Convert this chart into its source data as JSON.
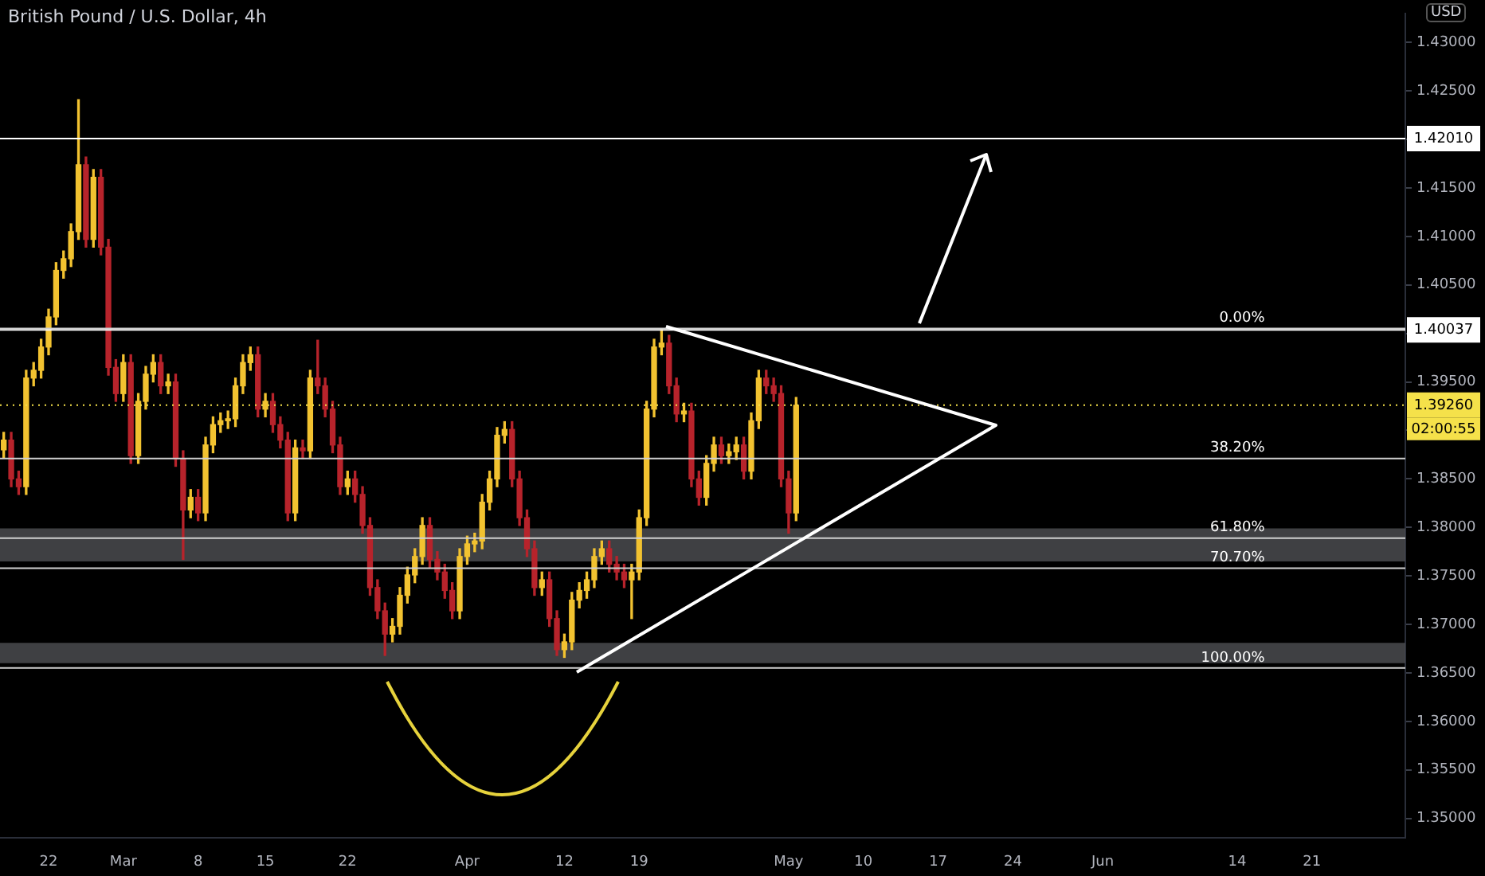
{
  "chart_data": {
    "type": "candlestick",
    "title": "British Pound / U.S. Dollar, 4h",
    "ylabel": "USD",
    "categories": [
      null,
      null,
      null,
      null,
      null,
      null,
      "22",
      null,
      null,
      null,
      null,
      null,
      null,
      null,
      null,
      null,
      "Mar",
      null,
      null,
      null,
      null,
      null,
      null,
      null,
      null,
      null,
      "8",
      null,
      null,
      null,
      null,
      null,
      null,
      null,
      null,
      "15",
      null,
      null,
      null,
      null,
      null,
      null,
      null,
      null,
      null,
      null,
      "22",
      null,
      null,
      null,
      null,
      null,
      null,
      null,
      null,
      null,
      null,
      null,
      null,
      null,
      null,
      null,
      "Apr",
      null,
      null,
      null,
      null,
      null,
      null,
      null,
      null,
      null,
      null,
      null,
      null,
      "12",
      null,
      null,
      null,
      null,
      null,
      null,
      null,
      null,
      null,
      "19",
      null,
      null,
      null,
      null,
      null,
      null,
      null,
      null,
      null,
      null,
      null,
      null,
      null,
      null,
      null,
      null,
      null,
      null,
      null,
      "May",
      null,
      null,
      null,
      null,
      null,
      null,
      null,
      null,
      null,
      "10",
      null,
      null,
      null,
      null,
      null,
      null,
      null,
      null,
      null,
      "17",
      null,
      null,
      null,
      null,
      null,
      null,
      null,
      null,
      null,
      "24",
      null,
      null,
      null,
      null,
      null,
      null,
      null,
      null,
      null,
      null,
      null,
      "Jun",
      null,
      null,
      null,
      null,
      null,
      null,
      null,
      null,
      null,
      null,
      null,
      null,
      null,
      null,
      null,
      null,
      null,
      "14",
      null,
      null,
      null,
      null,
      null,
      null,
      null,
      null,
      null,
      "21",
      null,
      null,
      null,
      null,
      null,
      null,
      null,
      null,
      null,
      null,
      null,
      null
    ],
    "ohlc": [
      [
        1.388,
        1.3898,
        1.3872,
        1.389
      ],
      [
        1.389,
        1.3898,
        1.3842,
        1.385
      ],
      [
        1.385,
        1.3858,
        1.3834,
        1.3842
      ],
      [
        1.3842,
        1.3962,
        1.3834,
        1.3954
      ],
      [
        1.3954,
        1.397,
        1.3946,
        1.3962
      ],
      [
        1.3962,
        1.3994,
        1.3954,
        1.3986
      ],
      [
        1.3986,
        1.4025,
        1.3978,
        1.4017
      ],
      [
        1.4017,
        1.4073,
        1.4009,
        1.4065
      ],
      [
        1.4065,
        1.4085,
        1.4057,
        1.4077
      ],
      [
        1.4077,
        1.4113,
        1.4069,
        1.4105
      ],
      [
        1.4105,
        1.4241,
        1.4097,
        1.4174
      ],
      [
        1.4174,
        1.4182,
        1.4089,
        1.4097
      ],
      [
        1.4097,
        1.4169,
        1.4089,
        1.4161
      ],
      [
        1.4161,
        1.4169,
        1.4081,
        1.4089
      ],
      [
        1.4089,
        1.4097,
        1.3957,
        1.3965
      ],
      [
        1.3965,
        1.3973,
        1.393,
        1.3938
      ],
      [
        1.3938,
        1.3978,
        1.393,
        1.397
      ],
      [
        1.397,
        1.3978,
        1.3866,
        1.3874
      ],
      [
        1.3874,
        1.3938,
        1.3866,
        1.393
      ],
      [
        1.393,
        1.3966,
        1.3922,
        1.3958
      ],
      [
        1.3958,
        1.3978,
        1.395,
        1.397
      ],
      [
        1.397,
        1.3978,
        1.3938,
        1.3946
      ],
      [
        1.3946,
        1.3958,
        1.3938,
        1.395
      ],
      [
        1.395,
        1.3958,
        1.3863,
        1.3871
      ],
      [
        1.3871,
        1.3879,
        1.3767,
        1.3818
      ],
      [
        1.3818,
        1.3839,
        1.381,
        1.3831
      ],
      [
        1.3831,
        1.3839,
        1.3807,
        1.3815
      ],
      [
        1.3815,
        1.3893,
        1.3807,
        1.3885
      ],
      [
        1.3885,
        1.3914,
        1.3877,
        1.3906
      ],
      [
        1.3906,
        1.3918,
        1.3898,
        1.391
      ],
      [
        1.391,
        1.392,
        1.3902,
        1.3912
      ],
      [
        1.3912,
        1.3954,
        1.3904,
        1.3946
      ],
      [
        1.3946,
        1.3978,
        1.3938,
        1.397
      ],
      [
        1.397,
        1.3986,
        1.3962,
        1.3978
      ],
      [
        1.3978,
        1.3986,
        1.3914,
        1.3922
      ],
      [
        1.3922,
        1.3938,
        1.3914,
        1.393
      ],
      [
        1.393,
        1.3938,
        1.3898,
        1.3906
      ],
      [
        1.3906,
        1.3914,
        1.3882,
        1.389
      ],
      [
        1.389,
        1.3898,
        1.3807,
        1.3815
      ],
      [
        1.3815,
        1.389,
        1.3807,
        1.3882
      ],
      [
        1.3882,
        1.389,
        1.3871,
        1.3879
      ],
      [
        1.3879,
        1.3962,
        1.3871,
        1.3954
      ],
      [
        1.3954,
        1.3993,
        1.3938,
        1.3946
      ],
      [
        1.3946,
        1.3954,
        1.3914,
        1.3922
      ],
      [
        1.3922,
        1.393,
        1.3877,
        1.3885
      ],
      [
        1.3885,
        1.3893,
        1.3834,
        1.3842
      ],
      [
        1.3842,
        1.3858,
        1.3834,
        1.385
      ],
      [
        1.385,
        1.3858,
        1.3826,
        1.3834
      ],
      [
        1.3834,
        1.3842,
        1.3794,
        1.3802
      ],
      [
        1.3802,
        1.381,
        1.373,
        1.3738
      ],
      [
        1.3738,
        1.3746,
        1.3706,
        1.3714
      ],
      [
        1.3714,
        1.3722,
        1.3668,
        1.369
      ],
      [
        1.369,
        1.3706,
        1.3682,
        1.3698
      ],
      [
        1.3698,
        1.3738,
        1.369,
        1.373
      ],
      [
        1.373,
        1.3759,
        1.3722,
        1.3751
      ],
      [
        1.3751,
        1.3778,
        1.3743,
        1.377
      ],
      [
        1.377,
        1.381,
        1.3762,
        1.3802
      ],
      [
        1.3802,
        1.381,
        1.3759,
        1.3767
      ],
      [
        1.3767,
        1.3775,
        1.3746,
        1.3754
      ],
      [
        1.3754,
        1.3762,
        1.3727,
        1.3735
      ],
      [
        1.3735,
        1.3743,
        1.3706,
        1.3714
      ],
      [
        1.3714,
        1.3778,
        1.3706,
        1.377
      ],
      [
        1.377,
        1.3791,
        1.3762,
        1.3783
      ],
      [
        1.3783,
        1.3794,
        1.3775,
        1.3786
      ],
      [
        1.3786,
        1.3834,
        1.3778,
        1.3826
      ],
      [
        1.3826,
        1.3858,
        1.3818,
        1.385
      ],
      [
        1.385,
        1.3903,
        1.3842,
        1.3895
      ],
      [
        1.3895,
        1.3909,
        1.3887,
        1.3901
      ],
      [
        1.3901,
        1.3909,
        1.3842,
        1.385
      ],
      [
        1.385,
        1.3858,
        1.3802,
        1.381
      ],
      [
        1.381,
        1.3818,
        1.377,
        1.3778
      ],
      [
        1.3778,
        1.3786,
        1.373,
        1.3738
      ],
      [
        1.3738,
        1.3754,
        1.373,
        1.3746
      ],
      [
        1.3746,
        1.3754,
        1.3698,
        1.3706
      ],
      [
        1.3706,
        1.3714,
        1.3668,
        1.3674
      ],
      [
        1.3674,
        1.369,
        1.3666,
        1.3682
      ],
      [
        1.3682,
        1.3733,
        1.3674,
        1.3725
      ],
      [
        1.3725,
        1.3743,
        1.3717,
        1.3735
      ],
      [
        1.3735,
        1.3754,
        1.3727,
        1.3746
      ],
      [
        1.3746,
        1.3778,
        1.3738,
        1.377
      ],
      [
        1.377,
        1.3786,
        1.3762,
        1.3778
      ],
      [
        1.3778,
        1.3786,
        1.3754,
        1.3762
      ],
      [
        1.3762,
        1.377,
        1.3746,
        1.3754
      ],
      [
        1.3754,
        1.3762,
        1.3738,
        1.3746
      ],
      [
        1.3746,
        1.3762,
        1.3706,
        1.3754
      ],
      [
        1.3754,
        1.3818,
        1.3746,
        1.381
      ],
      [
        1.381,
        1.393,
        1.3802,
        1.3922
      ],
      [
        1.3922,
        1.3994,
        1.3914,
        1.3986
      ],
      [
        1.3986,
        1.4004,
        1.3978,
        1.399
      ],
      [
        1.399,
        1.3998,
        1.3938,
        1.3946
      ],
      [
        1.3946,
        1.3954,
        1.3909,
        1.3917
      ],
      [
        1.3917,
        1.3928,
        1.3909,
        1.392
      ],
      [
        1.392,
        1.3928,
        1.3842,
        1.385
      ],
      [
        1.385,
        1.3858,
        1.3823,
        1.3831
      ],
      [
        1.3831,
        1.3874,
        1.3823,
        1.3866
      ],
      [
        1.3866,
        1.3893,
        1.3858,
        1.3885
      ],
      [
        1.3885,
        1.3893,
        1.3866,
        1.3874
      ],
      [
        1.3874,
        1.3886,
        1.3866,
        1.3878
      ],
      [
        1.3878,
        1.3893,
        1.387,
        1.3885
      ],
      [
        1.3885,
        1.3893,
        1.385,
        1.3858
      ],
      [
        1.3858,
        1.3918,
        1.385,
        1.391
      ],
      [
        1.391,
        1.3962,
        1.3902,
        1.3954
      ],
      [
        1.3954,
        1.3962,
        1.3938,
        1.3946
      ],
      [
        1.3946,
        1.3954,
        1.393,
        1.3938
      ],
      [
        1.3938,
        1.3946,
        1.3842,
        1.385
      ],
      [
        1.385,
        1.3858,
        1.3794,
        1.3815
      ],
      [
        1.3815,
        1.3934,
        1.3807,
        1.3926
      ],
      null,
      null,
      null,
      null,
      null,
      null,
      null,
      null,
      null,
      null,
      null,
      null,
      null,
      null,
      null,
      null,
      null,
      null,
      null,
      null,
      null,
      null,
      null,
      null,
      null,
      null,
      null,
      null,
      null,
      null,
      null,
      null,
      null,
      null,
      null,
      null,
      null,
      null,
      null,
      null,
      null,
      null,
      null,
      null,
      null,
      null,
      null,
      null,
      null,
      null,
      null,
      null,
      null,
      null,
      null,
      null,
      null,
      null,
      null,
      null,
      null,
      null,
      null,
      null,
      null,
      null,
      null,
      null,
      null,
      null,
      null,
      null,
      null,
      null,
      null,
      null,
      null,
      null,
      null,
      null,
      null
    ],
    "colors": [
      "#f2c230",
      "#b7232b",
      "#b7232b",
      "#f2c230",
      "#f2c230",
      "#f2c230",
      "#f2c230",
      "#f2c230",
      "#f2c230",
      "#f2c230",
      "#f2c230",
      "#b7232b",
      "#f2c230",
      "#b7232b",
      "#b7232b",
      "#b7232b",
      "#f2c230",
      "#b7232b",
      "#f2c230",
      "#f2c230",
      "#f2c230",
      "#b7232b",
      "#f2c230",
      "#b7232b",
      "#b7232b",
      "#f2c230",
      "#b7232b",
      "#f2c230",
      "#f2c230",
      "#f2c230",
      "#f2c230",
      "#f2c230",
      "#f2c230",
      "#f2c230",
      "#b7232b",
      "#f2c230",
      "#b7232b",
      "#b7232b",
      "#b7232b",
      "#f2c230",
      "#b7232b",
      "#f2c230",
      "#b7232b",
      "#b7232b",
      "#b7232b",
      "#b7232b",
      "#f2c230",
      "#b7232b",
      "#b7232b",
      "#b7232b",
      "#b7232b",
      "#b7232b",
      "#f2c230",
      "#f2c230",
      "#f2c230",
      "#f2c230",
      "#f2c230",
      "#b7232b",
      "#b7232b",
      "#b7232b",
      "#b7232b",
      "#f2c230",
      "#f2c230",
      "#f2c230",
      "#f2c230",
      "#f2c230",
      "#f2c230",
      "#f2c230",
      "#b7232b",
      "#b7232b",
      "#b7232b",
      "#b7232b",
      "#f2c230",
      "#b7232b",
      "#b7232b",
      "#f2c230",
      "#f2c230",
      "#f2c230",
      "#f2c230",
      "#f2c230",
      "#f2c230",
      "#b7232b",
      "#b7232b",
      "#b7232b",
      "#f2c230",
      "#f2c230",
      "#f2c230",
      "#f2c230",
      "#f2c230",
      "#b7232b",
      "#b7232b",
      "#f2c230",
      "#b7232b",
      "#b7232b",
      "#f2c230",
      "#f2c230",
      "#b7232b",
      "#f2c230",
      "#f2c230",
      "#b7232b",
      "#f2c230",
      "#f2c230",
      "#b7232b",
      "#b7232b",
      "#b7232b",
      "#b7232b",
      "#f2c230",
      null,
      null,
      null,
      null,
      null,
      null,
      null,
      null,
      null,
      null,
      null,
      null,
      null,
      null,
      null,
      null,
      null,
      null,
      null,
      null,
      null,
      null,
      null,
      null,
      null,
      null,
      null,
      null,
      null,
      null,
      null,
      null,
      null,
      null,
      null,
      null,
      null,
      null,
      null,
      null,
      null,
      null,
      null,
      null,
      null,
      null,
      null,
      null,
      null,
      null,
      null,
      null,
      null,
      null,
      null,
      null,
      null,
      null,
      null,
      null,
      null,
      null,
      null,
      null,
      null,
      null,
      null,
      null,
      null,
      null,
      null,
      null,
      null,
      null,
      null,
      null,
      null,
      null,
      null,
      null,
      null
    ],
    "ylim": [
      1.348,
      1.433
    ],
    "yticks": [
      {
        "value": 1.35,
        "label": "1.35000"
      },
      {
        "value": 1.355,
        "label": "1.35500"
      },
      {
        "value": 1.36,
        "label": "1.36000"
      },
      {
        "value": 1.365,
        "label": "1.36500"
      },
      {
        "value": 1.37,
        "label": "1.37000"
      },
      {
        "value": 1.375,
        "label": "1.37500"
      },
      {
        "value": 1.38,
        "label": "1.38000"
      },
      {
        "value": 1.385,
        "label": "1.38500"
      },
      {
        "value": 1.39,
        "label": null
      },
      {
        "value": 1.395,
        "label": "1.39500"
      },
      {
        "value": 1.4,
        "label": null
      },
      {
        "value": 1.405,
        "label": "1.40500"
      },
      {
        "value": 1.41,
        "label": "1.41000"
      },
      {
        "value": 1.415,
        "label": "1.41500"
      },
      {
        "value": 1.42,
        "label": null
      },
      {
        "value": 1.425,
        "label": "1.42500"
      },
      {
        "value": 1.43,
        "label": "1.43000"
      }
    ],
    "ref_lines": [
      {
        "axis": "y",
        "value": 1.4201,
        "label": "1.42010",
        "color": "#ffffff"
      },
      {
        "axis": "y",
        "value": 1.40037,
        "label": "1.40037",
        "color": "#ffffff"
      },
      {
        "axis": "y",
        "value": 1.3926,
        "label": "1.39260",
        "color": "#f5e14a",
        "line_style": "dotted"
      },
      {
        "axis": "y",
        "value": 1.4005,
        "color": "#d0d0d0"
      },
      {
        "axis": "y",
        "value": 1.3871,
        "color": "#d0d0d0"
      },
      {
        "axis": "y",
        "value": 1.3789,
        "color": "#d0d0d0"
      },
      {
        "axis": "y",
        "value": 1.3758,
        "color": "#d0d0d0"
      },
      {
        "axis": "y",
        "value": 1.3655,
        "color": "#d0d0d0"
      }
    ],
    "bands": [
      {
        "axis": "y",
        "from": 1.3765,
        "to": 1.3799,
        "color": "#4a4b4f"
      },
      {
        "axis": "y",
        "from": 1.366,
        "to": 1.3681,
        "color": "#4a4b4f"
      }
    ],
    "annotations": [
      "02:00:55",
      {
        "text": "0.00%",
        "y": 1.4005
      },
      {
        "text": "38.20%",
        "y": 1.3871
      },
      {
        "text": "61.80%",
        "y": 1.3789
      },
      {
        "text": "70.70%",
        "y": 1.3758
      },
      {
        "text": "100.00%",
        "y": 1.3655
      }
    ],
    "grid": false,
    "legend": false
  }
}
